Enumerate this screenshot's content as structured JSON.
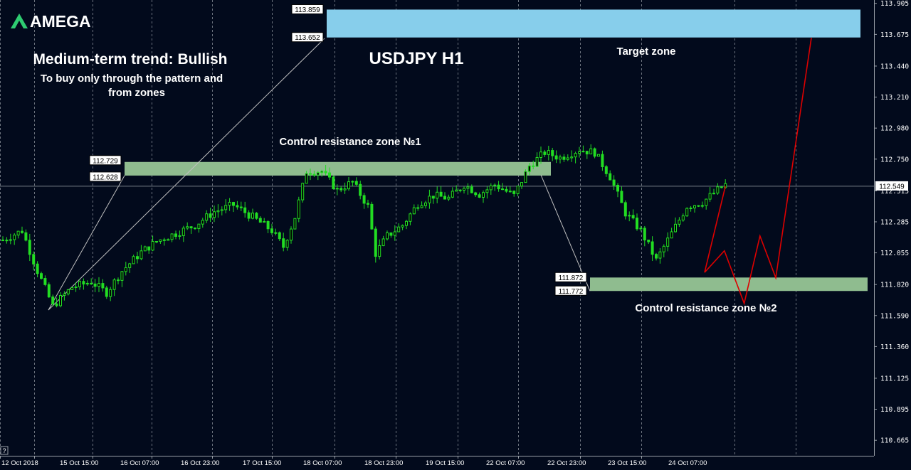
{
  "brand": {
    "name": "AMEGA"
  },
  "annotations": {
    "trend": "Medium-term trend: Bullish",
    "advice_line1": "To buy only through the pattern  and",
    "advice_line2": "from zones",
    "chart_title": "USDJPY H1",
    "target_zone": "Target zone",
    "zone1": "Control resistance zone №1",
    "zone2": "Control resistance zone №2",
    "corner_glyph": "?"
  },
  "colors": {
    "background": "#020a1c",
    "grid": "#9aa0a8",
    "candle": "#22dd22",
    "target_fill": "#87ceeb",
    "zone_fill": "#8fbc8f",
    "forecast": "#dd0000",
    "trendline": "#c0c0c0",
    "current_line": "#7a7f88",
    "text": "#ffffff"
  },
  "chart_data": {
    "type": "candlestick",
    "symbol": "USDJPY",
    "timeframe": "H1",
    "ylim": [
      110.55,
      113.93
    ],
    "y_ticks": [
      113.905,
      113.675,
      113.44,
      113.21,
      112.98,
      112.75,
      112.515,
      112.285,
      112.055,
      111.82,
      111.59,
      111.36,
      111.125,
      110.895,
      110.665
    ],
    "y_tick_labels": [
      "113.905",
      "113.675",
      "113.440",
      "113.210",
      "112.980",
      "112.750",
      "112.515",
      "112.285",
      "112.055",
      "111.820",
      "111.590",
      "111.360",
      "111.125",
      "110.895",
      "110.665"
    ],
    "x_labels": [
      "12 Oct 2018",
      "15 Oct 15:00",
      "16 Oct 07:00",
      "16 Oct 23:00",
      "17 Oct 15:00",
      "18 Oct 07:00",
      "18 Oct 23:00",
      "19 Oct 15:00",
      "22 Oct 07:00",
      "22 Oct 23:00",
      "23 Oct 15:00",
      "24 Oct 07:00"
    ],
    "bar_count": 155,
    "close_path": [
      [
        0,
        112.15
      ],
      [
        5,
        112.22
      ],
      [
        9,
        111.92
      ],
      [
        13,
        111.66
      ],
      [
        18,
        111.8
      ],
      [
        23,
        111.84
      ],
      [
        27,
        111.76
      ],
      [
        31,
        111.92
      ],
      [
        36,
        112.06
      ],
      [
        40,
        112.14
      ],
      [
        45,
        112.2
      ],
      [
        50,
        112.26
      ],
      [
        55,
        112.36
      ],
      [
        60,
        112.41
      ],
      [
        65,
        112.32
      ],
      [
        70,
        112.22
      ],
      [
        73,
        112.1
      ],
      [
        76,
        112.32
      ],
      [
        79,
        112.66
      ],
      [
        83,
        112.66
      ],
      [
        87,
        112.52
      ],
      [
        91,
        112.58
      ],
      [
        95,
        112.4
      ],
      [
        97,
        112.05
      ],
      [
        100,
        112.18
      ],
      [
        104,
        112.26
      ],
      [
        108,
        112.42
      ],
      [
        112,
        112.48
      ],
      [
        116,
        112.46
      ],
      [
        120,
        112.56
      ],
      [
        124,
        112.49
      ],
      [
        128,
        112.56
      ],
      [
        133,
        112.48
      ],
      [
        137,
        112.7
      ],
      [
        141,
        112.8
      ],
      [
        145,
        112.76
      ],
      [
        150,
        112.82
      ],
      [
        154,
        112.8
      ],
      [
        158,
        112.62
      ],
      [
        162,
        112.35
      ],
      [
        166,
        112.22
      ],
      [
        170,
        112.0
      ],
      [
        174,
        112.2
      ],
      [
        178,
        112.4
      ],
      [
        182,
        112.43
      ],
      [
        186,
        112.52
      ],
      [
        188,
        112.56
      ]
    ],
    "target_zone": {
      "label": "Target zone",
      "high": 113.859,
      "low": 113.652
    },
    "zone1": {
      "label": "Control resistance zone №1",
      "high": 112.729,
      "low": 112.628
    },
    "zone2": {
      "label": "Control resistance zone №2",
      "high": 111.872,
      "low": 111.772
    },
    "current_price": 112.549,
    "forecast_path": [
      [
        188,
        112.549
      ],
      [
        197,
        111.91
      ],
      [
        202,
        112.07
      ],
      [
        207,
        111.68
      ],
      [
        211,
        112.18
      ],
      [
        215,
        111.87
      ],
      [
        224,
        113.65
      ]
    ]
  }
}
